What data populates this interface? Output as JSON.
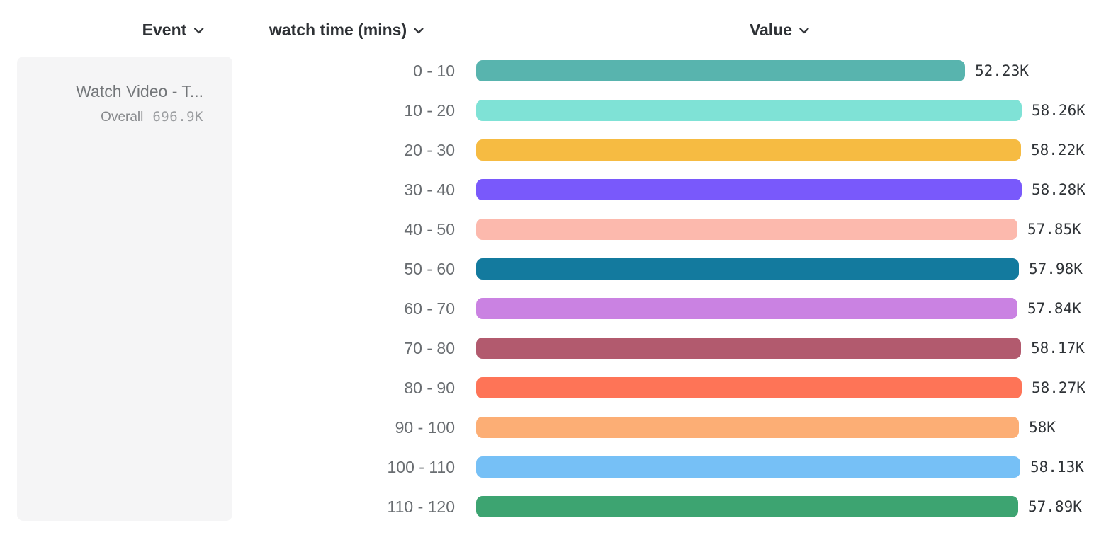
{
  "header": {
    "event_column": {
      "label": "Event"
    },
    "breakdown_column": {
      "label": "watch time (mins)"
    },
    "value_column": {
      "label": "Value"
    }
  },
  "icons": {
    "dropdown_chevron": "chevron-down"
  },
  "legend": {
    "event_name": "Watch Video - T...",
    "overall_label": "Overall",
    "overall_value": "696.9K"
  },
  "chart_data": {
    "type": "bar",
    "orientation": "horizontal",
    "title": "",
    "xlabel": "Value",
    "ylabel": "watch time (mins)",
    "grid": false,
    "legend_position": "left",
    "xlim": [
      0,
      58280
    ],
    "categories": [
      "0 - 10",
      "10 - 20",
      "20 - 30",
      "30 - 40",
      "40 - 50",
      "50 - 60",
      "60 - 70",
      "70 - 80",
      "80 - 90",
      "90 - 100",
      "100 - 110",
      "110 - 120"
    ],
    "values": [
      52230,
      58260,
      58220,
      58280,
      57850,
      57980,
      57840,
      58170,
      58270,
      58000,
      58130,
      57890
    ],
    "value_labels": [
      "52.23K",
      "58.26K",
      "58.22K",
      "58.28K",
      "57.85K",
      "57.98K",
      "57.84K",
      "58.17K",
      "58.27K",
      "58K",
      "58.13K",
      "57.89K"
    ],
    "colors": [
      "#58b4ae",
      "#7fe2d6",
      "#f6bb42",
      "#7959fb",
      "#fcb9ad",
      "#137a9e",
      "#ca82e2",
      "#b25a6e",
      "#fe7457",
      "#fcae75",
      "#76c0f6",
      "#3da471"
    ]
  }
}
